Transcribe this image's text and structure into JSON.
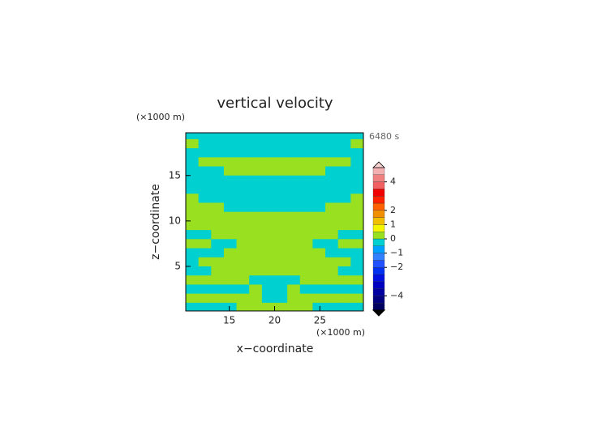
{
  "chart_data": {
    "type": "contour",
    "title": "vertical velocity",
    "x_unit": "(×1000 m)",
    "y_unit": "(×1000 m)",
    "time_label": "6480 s",
    "x_label": "x−coordinate",
    "y_label": "z−coordinate",
    "xlim": [
      10.2,
      29.8
    ],
    "ylim": [
      0.1,
      19.7
    ],
    "xticks": [
      15,
      20,
      25
    ],
    "yticks": [
      5,
      10,
      15
    ],
    "x": [
      10.9,
      12.3,
      13.7,
      15.1,
      16.5,
      17.9,
      19.3,
      20.7,
      22.1,
      23.5,
      24.9,
      26.3,
      27.7,
      29.1
    ],
    "y": [
      19.5,
      18.5,
      17.5,
      16.5,
      15.5,
      14.5,
      13.5,
      12.5,
      11.5,
      10.5,
      9.5,
      8.5,
      7.5,
      6.5,
      5.5,
      4.5,
      3.5,
      2.5,
      1.5,
      0.5
    ],
    "z": [
      [
        -0.2,
        -0.2,
        -0.2,
        -0.2,
        -0.2,
        -0.2,
        -0.2,
        -0.2,
        -0.2,
        -0.2,
        -0.2,
        -0.2,
        -0.2,
        -0.2
      ],
      [
        0.2,
        -0.2,
        -0.2,
        -0.2,
        -0.2,
        -0.2,
        -0.2,
        -0.2,
        -0.2,
        -0.2,
        -0.2,
        -0.2,
        -0.2,
        0.2
      ],
      [
        -0.2,
        -0.2,
        -0.2,
        -0.2,
        -0.2,
        -0.2,
        -0.2,
        -0.2,
        -0.2,
        -0.2,
        -0.2,
        -0.2,
        -0.2,
        -0.2
      ],
      [
        -0.2,
        0.2,
        0.2,
        0.2,
        0.2,
        0.2,
        0.2,
        0.2,
        0.2,
        0.2,
        0.2,
        0.2,
        0.2,
        -0.2
      ],
      [
        -0.2,
        -0.2,
        -0.2,
        0.2,
        0.2,
        0.2,
        0.2,
        0.2,
        0.2,
        0.2,
        0.2,
        -0.2,
        -0.2,
        -0.2
      ],
      [
        -0.2,
        -0.2,
        -0.2,
        -0.2,
        -0.2,
        -0.2,
        -0.2,
        -0.2,
        -0.2,
        -0.2,
        -0.2,
        -0.2,
        -0.2,
        -0.2
      ],
      [
        -0.2,
        -0.2,
        -0.2,
        -0.2,
        -0.2,
        -0.2,
        -0.2,
        -0.2,
        -0.2,
        -0.2,
        -0.2,
        -0.2,
        -0.2,
        -0.2
      ],
      [
        0.2,
        -0.2,
        -0.2,
        -0.2,
        -0.2,
        -0.2,
        -0.2,
        -0.2,
        -0.2,
        -0.2,
        -0.2,
        -0.2,
        -0.2,
        0.2
      ],
      [
        0.2,
        0.2,
        0.2,
        -0.2,
        -0.2,
        -0.2,
        -0.2,
        -0.2,
        -0.2,
        -0.2,
        -0.2,
        0.2,
        0.2,
        0.2
      ],
      [
        0.2,
        0.2,
        0.2,
        0.2,
        0.2,
        0.2,
        0.2,
        0.2,
        0.2,
        0.2,
        0.2,
        0.2,
        0.2,
        0.2
      ],
      [
        0.2,
        0.2,
        0.2,
        0.2,
        0.2,
        0.2,
        0.2,
        0.2,
        0.2,
        0.2,
        0.2,
        0.2,
        0.2,
        0.2
      ],
      [
        -0.2,
        -0.2,
        0.2,
        0.2,
        0.2,
        0.2,
        0.2,
        0.2,
        0.2,
        0.2,
        0.2,
        0.2,
        -0.2,
        -0.2
      ],
      [
        0.2,
        0.2,
        -0.2,
        -0.2,
        0.2,
        0.2,
        0.2,
        0.2,
        0.2,
        0.2,
        -0.2,
        -0.2,
        0.2,
        0.2
      ],
      [
        -0.2,
        -0.2,
        -0.2,
        0.2,
        0.2,
        0.2,
        0.2,
        0.2,
        0.2,
        0.2,
        0.2,
        -0.2,
        -0.2,
        -0.2
      ],
      [
        -0.2,
        0.2,
        0.2,
        0.2,
        0.2,
        0.2,
        0.2,
        0.2,
        0.2,
        0.2,
        0.2,
        0.2,
        0.2,
        -0.2
      ],
      [
        -0.2,
        -0.2,
        0.2,
        0.2,
        0.2,
        0.2,
        0.2,
        0.2,
        0.2,
        0.2,
        0.2,
        0.2,
        -0.2,
        -0.2
      ],
      [
        0.2,
        0.2,
        0.2,
        0.2,
        0.2,
        -0.2,
        -0.2,
        -0.2,
        -0.2,
        0.2,
        0.2,
        0.2,
        0.2,
        0.2
      ],
      [
        -0.2,
        -0.2,
        -0.2,
        -0.2,
        -0.2,
        0.2,
        -0.2,
        -0.2,
        0.2,
        -0.2,
        -0.2,
        -0.2,
        -0.2,
        -0.2
      ],
      [
        0.2,
        0.2,
        0.2,
        0.2,
        0.2,
        0.2,
        -0.2,
        -0.2,
        0.2,
        0.2,
        0.2,
        0.2,
        0.2,
        0.2
      ],
      [
        -0.2,
        -0.2,
        -0.2,
        -0.2,
        0.2,
        0.2,
        0.2,
        0.2,
        0.2,
        0.2,
        -0.2,
        -0.2,
        -0.2,
        -0.2
      ]
    ],
    "colorbar": {
      "levels": [
        -5,
        -4.5,
        -4,
        -3.5,
        -3,
        -2.5,
        -2,
        -1.5,
        -1,
        -0.5,
        0,
        0.5,
        1,
        1.5,
        2,
        2.5,
        3,
        3.5,
        4,
        4.5,
        5
      ],
      "colors": [
        "#000060",
        "#000080",
        "#0000a0",
        "#0000c0",
        "#0010e0",
        "#0030f0",
        "#2050ff",
        "#3080ff",
        "#00a0ff",
        "#00d0d0",
        "#99e020",
        "#f5f500",
        "#f0c000",
        "#f09000",
        "#ff6000",
        "#ff2000",
        "#f00000",
        "#f06060",
        "#f08080",
        "#f4b0b0"
      ],
      "ticks": [
        4,
        2,
        1,
        0,
        {
          "value": -1,
          "label": "−1"
        },
        {
          "value": -2,
          "label": "−2"
        },
        {
          "value": -4,
          "label": "−4"
        }
      ]
    }
  }
}
